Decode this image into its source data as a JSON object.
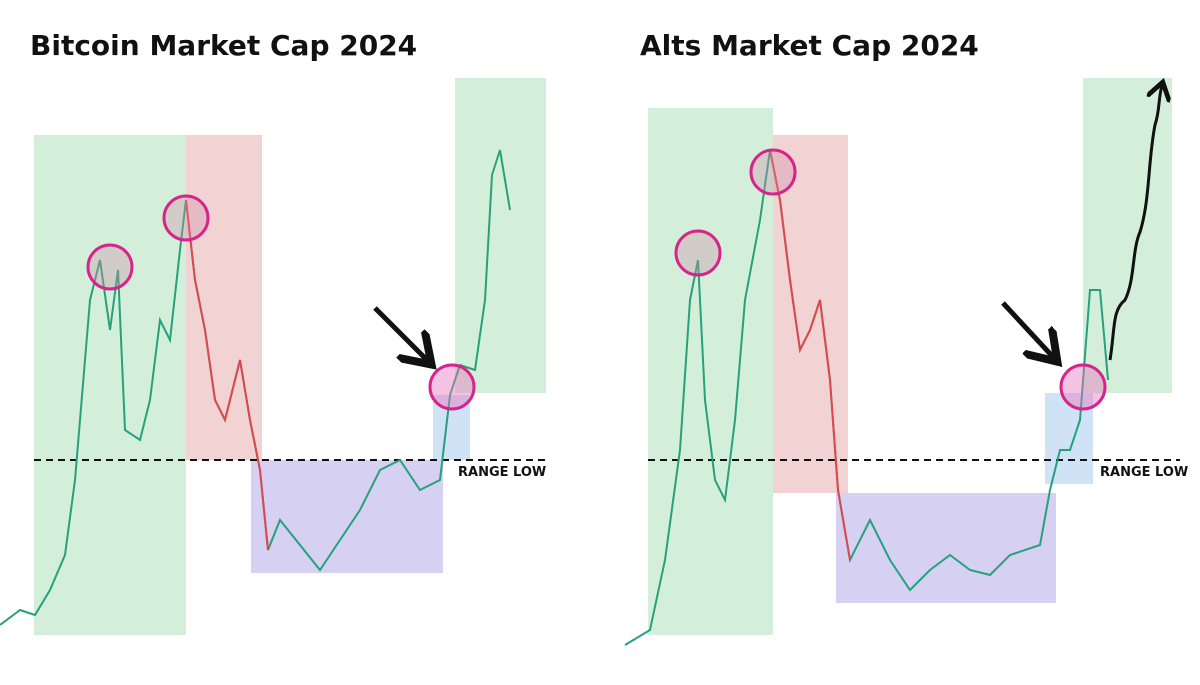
{
  "panels": [
    {
      "title": "Bitcoin Market Cap 2024",
      "annotation": "RANGE LOW"
    },
    {
      "title": "Alts Market Cap 2024",
      "annotation": "RANGE LOW"
    }
  ]
}
